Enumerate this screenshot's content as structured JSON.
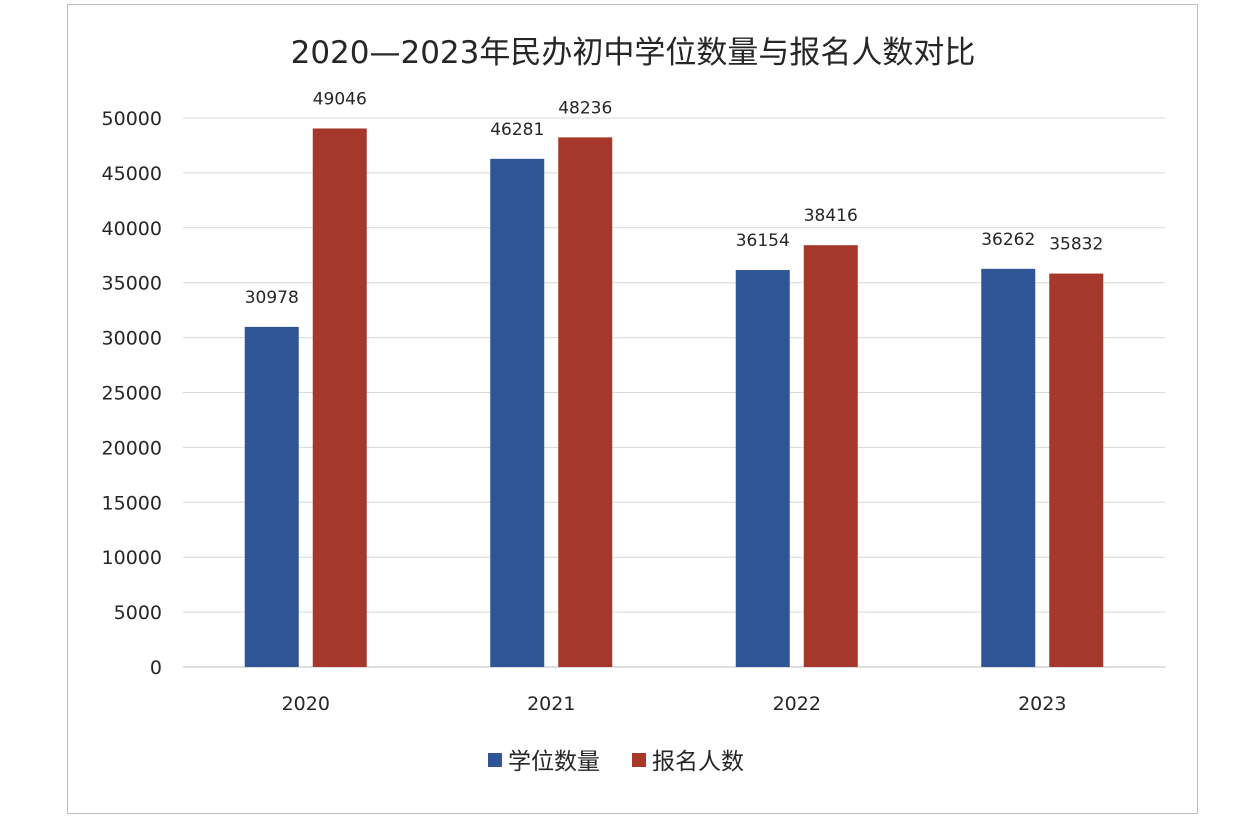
{
  "chart_data": {
    "type": "bar",
    "title": "2020—2023年民办初中学位数量与报名人数对比",
    "xlabel": "",
    "ylabel": "",
    "categories": [
      "2020",
      "2021",
      "2022",
      "2023"
    ],
    "series": [
      {
        "name": "学位数量",
        "values": [
          30978,
          46281,
          36154,
          36262
        ],
        "color": "#2f5597"
      },
      {
        "name": "报名人数",
        "values": [
          49046,
          48236,
          38416,
          35832
        ],
        "color": "#a5382a"
      }
    ],
    "ylim": [
      0,
      50000
    ],
    "y_ticks": [
      0,
      5000,
      10000,
      15000,
      20000,
      25000,
      30000,
      35000,
      40000,
      45000,
      50000
    ],
    "grid": true,
    "legend_position": "bottom",
    "data_labels": true,
    "colors": {
      "grid": "#d9d9d9",
      "axis": "#bfbfbf",
      "text": "#262626"
    }
  }
}
